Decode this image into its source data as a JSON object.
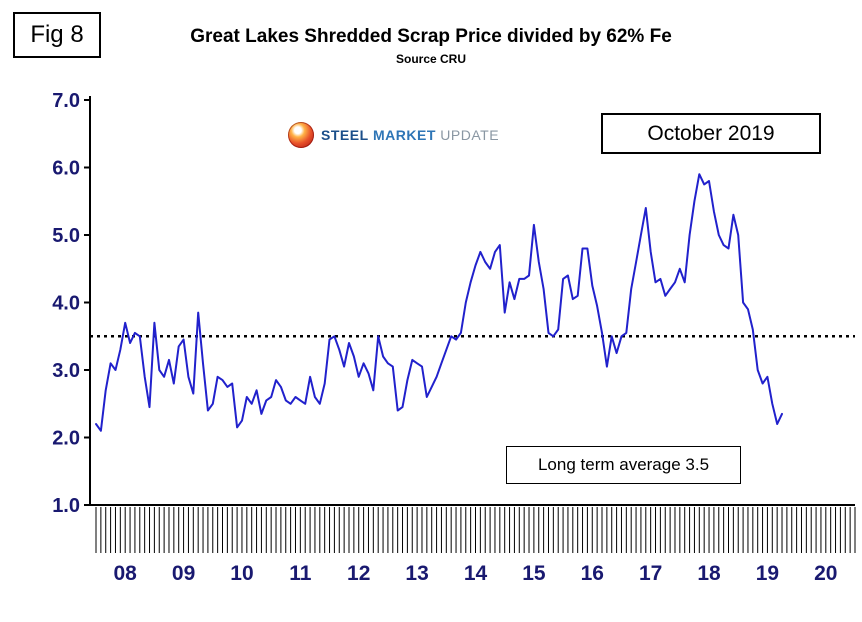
{
  "fig_label": "Fig 8",
  "header": {
    "title": "Great Lakes Shredded Scrap Price divided by 62% Fe",
    "subtitle": "Source CRU"
  },
  "annotations": {
    "date_box": "October 2019",
    "average_box": "Long term average 3.5"
  },
  "logo": {
    "steel": "STEEL",
    "market": "MARKET",
    "update": "UPDATE"
  },
  "chart_data": {
    "type": "line",
    "title": "Great Lakes Shredded Scrap Price divided by 62% Fe",
    "subtitle": "Source CRU",
    "ylim": [
      1.0,
      7.0
    ],
    "yticks": [
      1.0,
      2.0,
      3.0,
      4.0,
      5.0,
      6.0,
      7.0
    ],
    "ytick_labels": [
      "1.0",
      "2.0",
      "3.0",
      "4.0",
      "5.0",
      "6.0",
      "7.0"
    ],
    "x_year_labels": [
      "08",
      "09",
      "10",
      "11",
      "12",
      "13",
      "14",
      "15",
      "16",
      "17",
      "18",
      "19",
      "20"
    ],
    "x_axis_span_years": 13,
    "start_month": "2008-01",
    "end_month": "2019-10",
    "long_term_average": 3.5,
    "grid": false,
    "legend": false,
    "line_color": "#2121cc",
    "average_line_color": "#000000",
    "axis_label_color": "#191970",
    "monthly_values": [
      2.2,
      2.1,
      2.7,
      3.1,
      3.0,
      3.3,
      3.7,
      3.4,
      3.55,
      3.5,
      2.9,
      2.45,
      3.7,
      3.0,
      2.9,
      3.15,
      2.8,
      3.35,
      3.45,
      2.9,
      2.65,
      3.85,
      3.1,
      2.4,
      2.5,
      2.9,
      2.85,
      2.75,
      2.8,
      2.15,
      2.25,
      2.6,
      2.5,
      2.7,
      2.35,
      2.55,
      2.6,
      2.85,
      2.75,
      2.55,
      2.5,
      2.6,
      2.55,
      2.5,
      2.9,
      2.6,
      2.5,
      2.8,
      3.45,
      3.5,
      3.3,
      3.05,
      3.4,
      3.2,
      2.9,
      3.1,
      2.95,
      2.7,
      3.5,
      3.2,
      3.1,
      3.05,
      2.4,
      2.45,
      2.85,
      3.15,
      3.1,
      3.05,
      2.6,
      2.75,
      2.9,
      3.1,
      3.3,
      3.5,
      3.45,
      3.55,
      4.0,
      4.3,
      4.55,
      4.75,
      4.6,
      4.5,
      4.75,
      4.85,
      3.85,
      4.3,
      4.05,
      4.35,
      4.35,
      4.4,
      5.15,
      4.6,
      4.2,
      3.55,
      3.5,
      3.6,
      4.35,
      4.4,
      4.05,
      4.1,
      4.8,
      4.8,
      4.25,
      3.95,
      3.55,
      3.05,
      3.5,
      3.25,
      3.5,
      3.55,
      4.2,
      4.6,
      5.0,
      5.4,
      4.75,
      4.3,
      4.35,
      4.1,
      4.2,
      4.3,
      4.5,
      4.3,
      5.0,
      5.5,
      5.9,
      5.75,
      5.8,
      5.35,
      5.0,
      4.85,
      4.8,
      5.3,
      5.0,
      4.0,
      3.9,
      3.6,
      3.0,
      2.8,
      2.9,
      2.5,
      2.2,
      2.35
    ]
  }
}
